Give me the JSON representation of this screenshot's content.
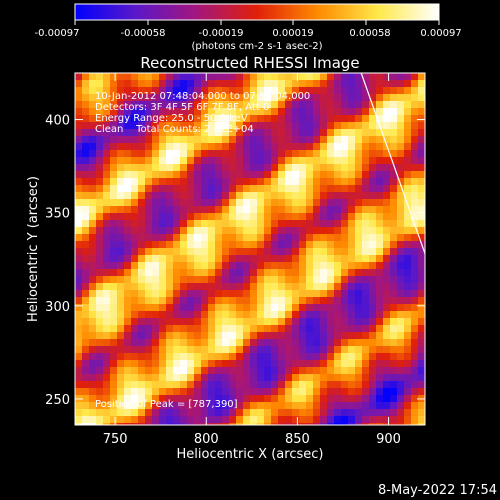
{
  "chart_data": {
    "type": "heatmap",
    "title": "Reconstructed RHESSI Image",
    "xlabel": "Heliocentric X (arcsec)",
    "ylabel": "Heliocentric Y (arcsec)",
    "xlim": [
      728,
      920
    ],
    "ylim": [
      236,
      425
    ],
    "x_ticks": [
      750,
      800,
      850,
      900
    ],
    "y_ticks": [
      250,
      300,
      350,
      400
    ],
    "x_tick_labels": [
      "750",
      "800",
      "850",
      "900"
    ],
    "y_tick_labels": [
      "250",
      "300",
      "350",
      "400"
    ],
    "colorbar": {
      "min": -0.00097,
      "max": 0.00097,
      "tick_labels": [
        "-0.00097",
        "-0.00058",
        "-0.00019",
        "0.00019",
        "0.00058",
        "0.00097"
      ],
      "unit_label": "(photons cm-2 s-1 asec-2)",
      "colors": [
        "#0000ff",
        "#5a18c8",
        "#a3167e",
        "#e0200a",
        "#ff8a00",
        "#ffe94a",
        "#ffffff"
      ]
    },
    "annotations": {
      "time": "10-Jan-2012 07:48:04.000 to 07:54:04.000",
      "detectors": "Detectors: 3F 4F 5F 6F 7F 8F, Att 0",
      "energy": "Energy Range: 25.0 - 50.0 keV",
      "clean": "Clean    Total Counts: 2.62E+04",
      "peak": "Position of Peak = [787,390]"
    },
    "peak": [
      787,
      390
    ],
    "limb_line": [
      [
        885,
        425
      ],
      [
        920,
        328
      ]
    ]
  },
  "footer": {
    "timestamp": "8-May-2022 17:54"
  }
}
